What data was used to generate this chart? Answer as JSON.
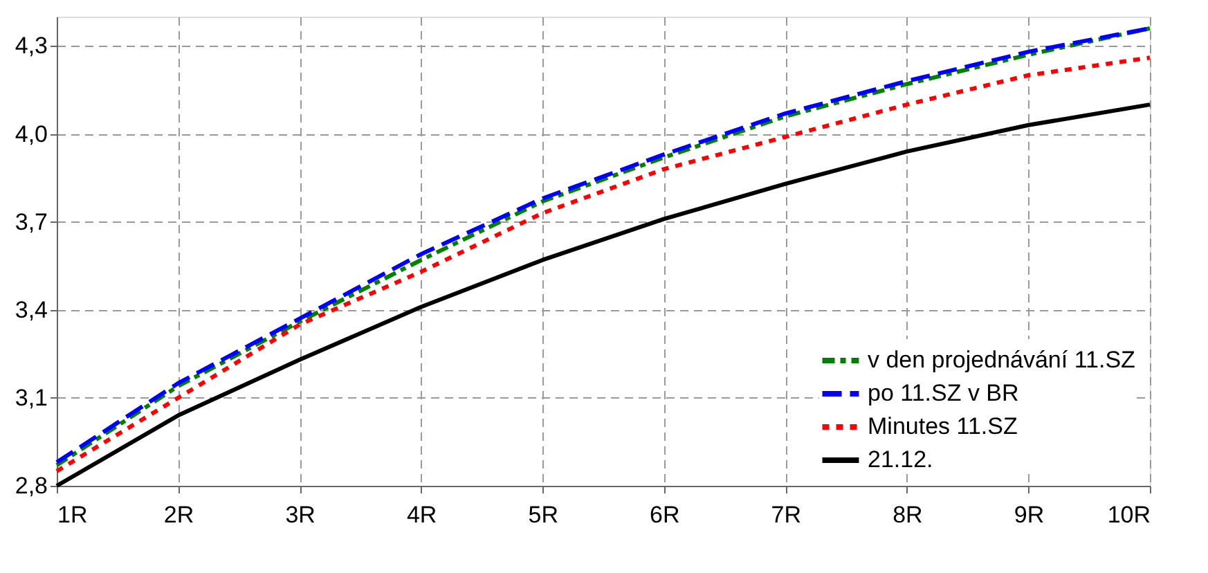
{
  "chart_data": {
    "type": "line",
    "categories": [
      "1R",
      "2R",
      "3R",
      "4R",
      "5R",
      "6R",
      "7R",
      "8R",
      "9R",
      "10R"
    ],
    "ylim": [
      2.8,
      4.4
    ],
    "yticks": [
      {
        "value": 2.8,
        "label": "2,8"
      },
      {
        "value": 3.1,
        "label": "3,1"
      },
      {
        "value": 3.4,
        "label": "3,4"
      },
      {
        "value": 3.7,
        "label": "3,7"
      },
      {
        "value": 4.0,
        "label": "4,0"
      },
      {
        "value": 4.3,
        "label": "4,3"
      }
    ],
    "grid": true,
    "legend": "bottom right",
    "marker": "none",
    "series": [
      {
        "name": "v den projednávání 11.SZ",
        "color": "#008000",
        "line_style": "dashdot",
        "values": [
          2.87,
          3.14,
          3.36,
          3.57,
          3.77,
          3.92,
          4.06,
          4.17,
          4.27,
          4.36
        ]
      },
      {
        "name": "po 11.SZ v BR",
        "color": "#0000ff",
        "line_style": "dashed",
        "values": [
          2.88,
          3.15,
          3.37,
          3.59,
          3.78,
          3.93,
          4.07,
          4.18,
          4.28,
          4.36
        ]
      },
      {
        "name": "Minutes 11.SZ",
        "color": "#ff0000",
        "line_style": "dotted",
        "values": [
          2.85,
          3.1,
          3.35,
          3.53,
          3.73,
          3.88,
          3.99,
          4.1,
          4.2,
          4.26
        ]
      },
      {
        "name": "21.12.",
        "color": "#000000",
        "line_style": "solid",
        "values": [
          2.8,
          3.04,
          3.23,
          3.41,
          3.57,
          3.71,
          3.83,
          3.94,
          4.03,
          4.1
        ]
      }
    ]
  }
}
